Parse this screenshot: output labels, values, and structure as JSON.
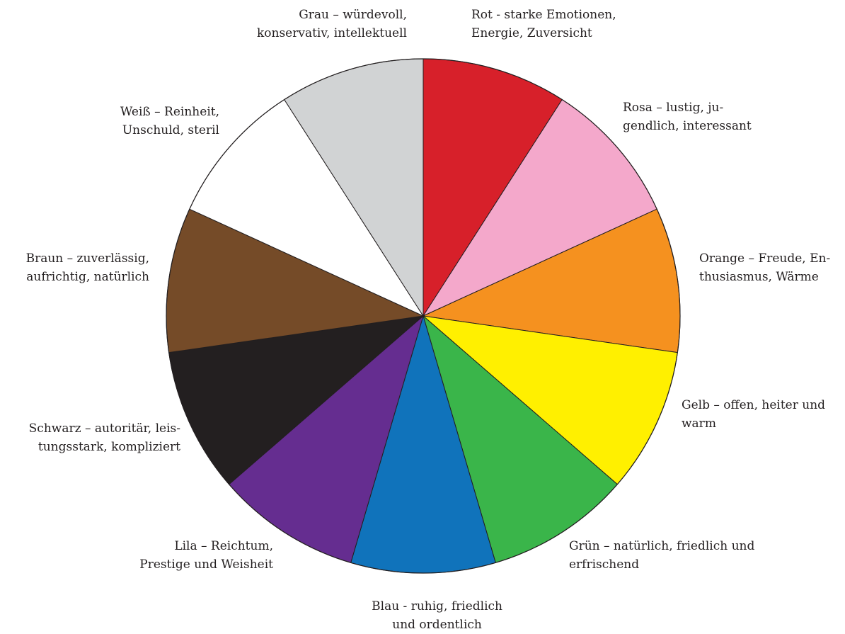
{
  "chart_data": {
    "type": "pie",
    "title": "",
    "slices": [
      {
        "label": "Rot - starke Emotionen,\nEnergie, Zuversicht",
        "value": 1,
        "color": "#d7202a"
      },
      {
        "label": "Rosa – lustig, ju-\ngendlich, interessant",
        "value": 1,
        "color": "#f4a8cb"
      },
      {
        "label": "Orange – Freude, En-\nthusiasmus, Wärme",
        "value": 1,
        "color": "#f5911f"
      },
      {
        "label": "Gelb – offen, heiter und\nwarm",
        "value": 1,
        "color": "#fff000"
      },
      {
        "label": "Grün – natürlich, friedlich und\nerfrischend",
        "value": 1,
        "color": "#3ab54a"
      },
      {
        "label": "Blau - ruhig, friedlich\nund ordentlich",
        "value": 1,
        "color": "#1073bb"
      },
      {
        "label": "Lila – Reichtum,\nPrestige und Weisheit",
        "value": 1,
        "color": "#652d90"
      },
      {
        "label": "Schwarz – autoritär, leis-\ntungsstark, kompliziert",
        "value": 1,
        "color": "#231f20"
      },
      {
        "label": "Braun – zuverlässig,\naufrichtig, natürlich",
        "value": 1,
        "color": "#754b28"
      },
      {
        "label": "Weiß – Reinheit,\nUnschuld, steril",
        "value": 1,
        "color": "#ffffff"
      },
      {
        "label": "Grau – würdevoll,\nkonservativ, intellektuell",
        "value": 1,
        "color": "#d1d3d4"
      }
    ]
  }
}
